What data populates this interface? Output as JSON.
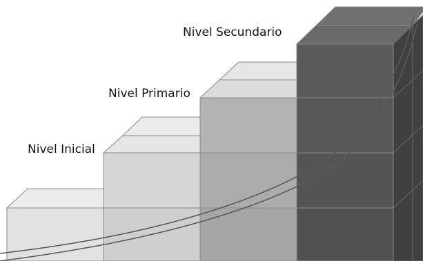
{
  "labels": {
    "level_1": "Nivel Inicial",
    "level_2": "Nivel Primario",
    "level_3": "Nivel Secundario"
  },
  "colors": {
    "step_1_front": "#e2e2e2",
    "step_2_front": "#d3d3d3",
    "step_3_front": "#ababab",
    "step_4_front": "#575757",
    "top_light": "#ececec",
    "side_dark": "#3f3f3f",
    "edge": "#7f7f7f",
    "curve": "#555555"
  }
}
